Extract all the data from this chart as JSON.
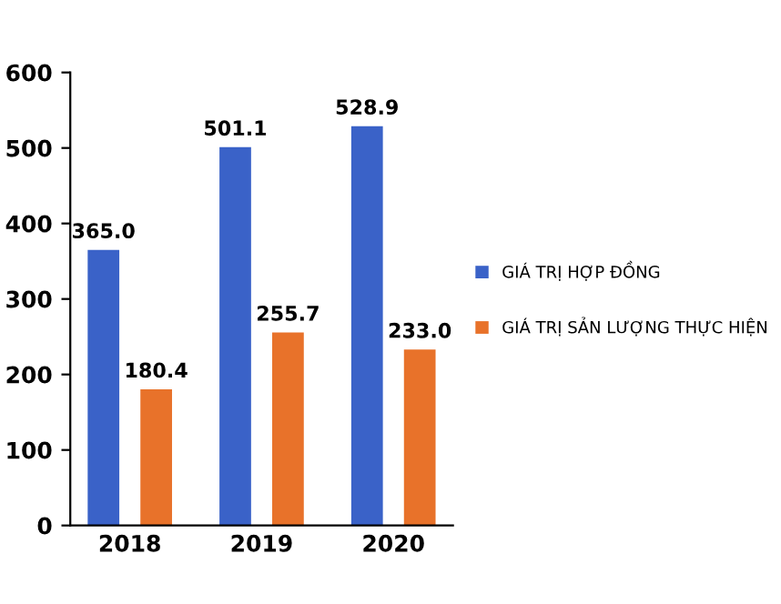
{
  "chart_data": {
    "type": "bar",
    "categories": [
      "2018",
      "2019",
      "2020"
    ],
    "series": [
      {
        "name": "GIÁ TRỊ HỢP ĐỒNG",
        "color": "#3a62c8",
        "values": [
          365.0,
          501.1,
          528.9
        ],
        "value_labels": [
          "365.0",
          "501.1",
          "528.9"
        ]
      },
      {
        "name": "GIÁ TRỊ SẢN LƯỢNG THỰC HIỆN",
        "color": "#e8722a",
        "values": [
          180.4,
          255.7,
          233.0
        ],
        "value_labels": [
          "180.4",
          "255.7",
          "233.0"
        ]
      }
    ],
    "ylim": [
      0,
      600
    ],
    "yticks": [
      0,
      100,
      200,
      300,
      400,
      500,
      600
    ],
    "legend": "right",
    "grid": false
  }
}
